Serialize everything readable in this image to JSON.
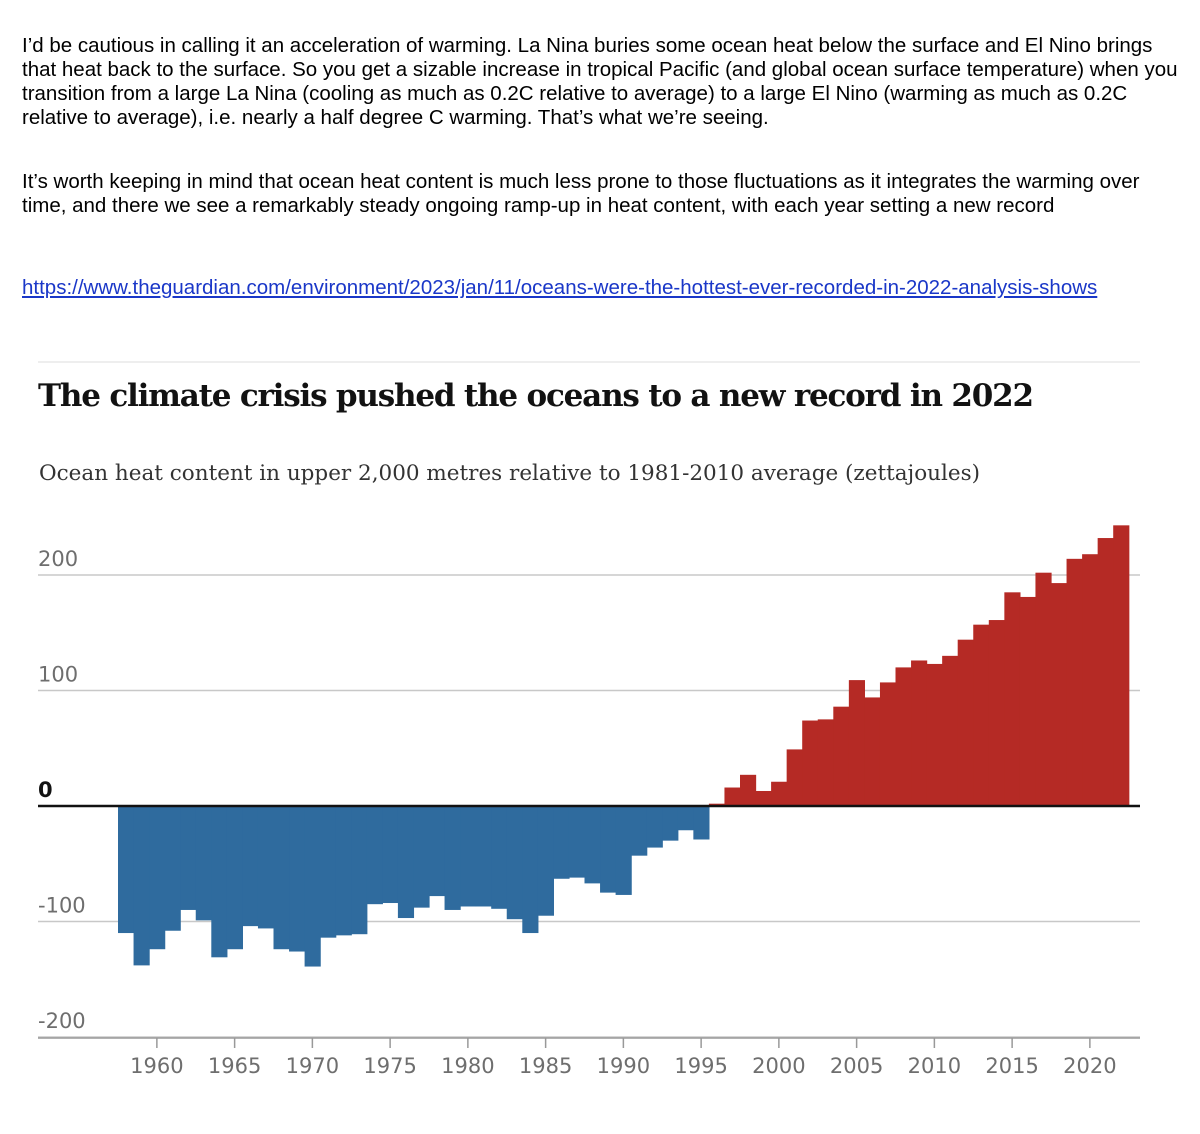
{
  "text": {
    "paragraph_1": "I’d be cautious in calling it an acceleration of warming. La Nina buries some ocean heat below the surface and El Nino brings that heat back to the surface. So you get a sizable increase in tropical Pacific (and global ocean surface temperature) when you transition from a large La Nina (cooling as much as 0.2C relative to average) to a large El Nino (warming as much as 0.2C relative to average), i.e. nearly a half degree C warming. That’s what we’re seeing.",
    "paragraph_2": "It’s worth keeping in mind that ocean heat content is much less prone to those fluctuations as it integrates the warming over time, and there we see a remarkably steady ongoing ramp-up in heat content, with each year setting a new record",
    "link": "https://www.theguardian.com/environment/2023/jan/11/oceans-were-the-hottest-ever-recorded-in-2022-analysis-shows"
  },
  "colors": {
    "positive": "#b52a25",
    "negative": "#2f6b9e",
    "gridline": "#c8c8c8",
    "zero_line": "#121212",
    "link": "#1a37c8"
  },
  "chart_data": {
    "type": "bar",
    "title": "The climate crisis pushed the oceans to a new record in 2022",
    "subtitle": "Ocean heat content in upper 2,000 metres relative to 1981-2010 average (zettajoules)",
    "xlabel": "",
    "ylabel": "",
    "ylim": [
      -200,
      200
    ],
    "yticks": [
      "200",
      "100",
      "0",
      "-100",
      "-200"
    ],
    "xticks": [
      "1960",
      "1965",
      "1970",
      "1975",
      "1980",
      "1985",
      "1990",
      "1995",
      "2000",
      "2005",
      "2010",
      "2015",
      "2020"
    ],
    "grid": true,
    "categories": [
      1958,
      1959,
      1960,
      1961,
      1962,
      1963,
      1964,
      1965,
      1966,
      1967,
      1968,
      1969,
      1970,
      1971,
      1972,
      1973,
      1974,
      1975,
      1976,
      1977,
      1978,
      1979,
      1980,
      1981,
      1982,
      1983,
      1984,
      1985,
      1986,
      1987,
      1988,
      1989,
      1990,
      1991,
      1992,
      1993,
      1994,
      1995,
      1996,
      1997,
      1998,
      1999,
      2000,
      2001,
      2002,
      2003,
      2004,
      2005,
      2006,
      2007,
      2008,
      2009,
      2010,
      2011,
      2012,
      2013,
      2014,
      2015,
      2016,
      2017,
      2018,
      2019,
      2020,
      2021,
      2022
    ],
    "values": [
      -110,
      -138,
      -124,
      -108,
      -90,
      -99,
      -131,
      -124,
      -104,
      -106,
      -124,
      -126,
      -139,
      -114,
      -112,
      -111,
      -85,
      -84,
      -97,
      -88,
      -78,
      -90,
      -87,
      -87,
      -89,
      -98,
      -110,
      -95,
      -63,
      -62,
      -67,
      -75,
      -77,
      -43,
      -36,
      -30,
      -21,
      -29,
      2,
      16,
      27,
      13,
      21,
      49,
      74,
      75,
      86,
      109,
      94,
      107,
      120,
      126,
      123,
      130,
      144,
      157,
      161,
      185,
      181,
      202,
      193,
      214,
      218,
      232,
      243
    ]
  }
}
